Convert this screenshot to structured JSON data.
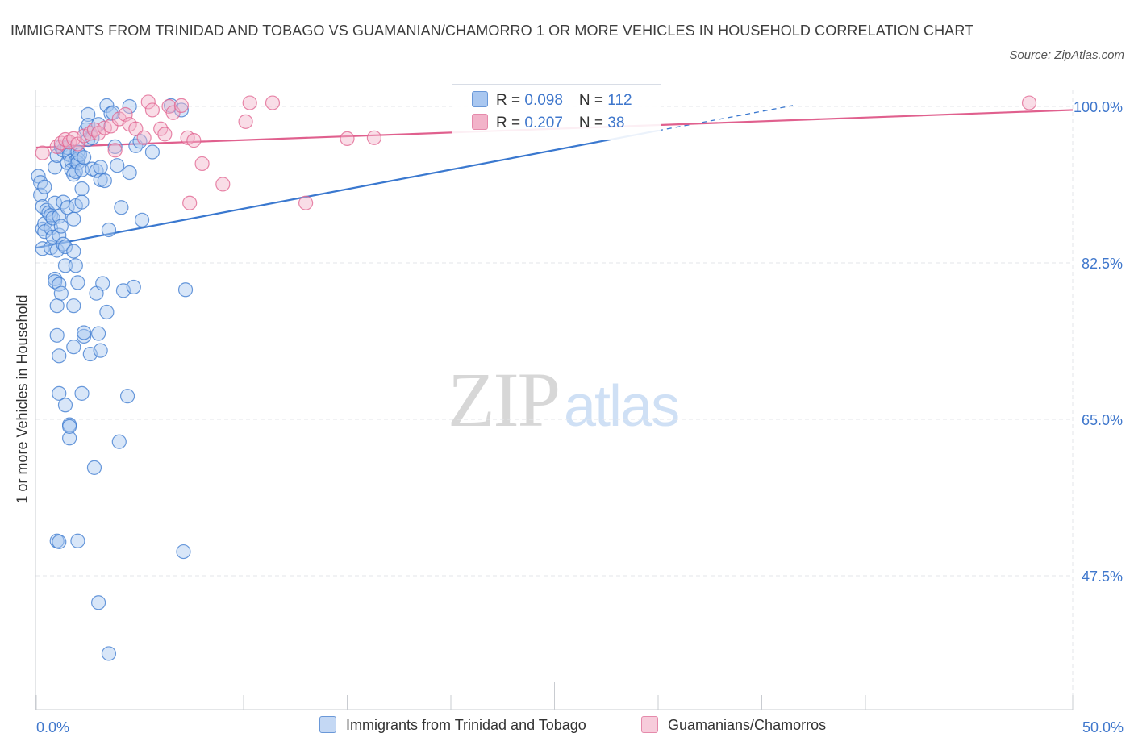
{
  "title": "IMMIGRANTS FROM TRINIDAD AND TOBAGO VS GUAMANIAN/CHAMORRO 1 OR MORE VEHICLES IN HOUSEHOLD CORRELATION CHART",
  "source": "Source: ZipAtlas.com",
  "watermark": {
    "zip": "ZIP",
    "atlas": "atlas"
  },
  "colors": {
    "blue": "#3a78cf",
    "blue_fill": "#a9c7f0",
    "pink": "#e0608e",
    "pink_fill": "#f2b3c9",
    "axis_text": "#3f77cc"
  },
  "legend_top": {
    "rows": [
      {
        "r_label": "R = ",
        "r_value": "0.098",
        "n_label": "N = ",
        "n_value": "112"
      },
      {
        "r_label": "R = ",
        "r_value": "0.207",
        "n_label": "N = ",
        "n_value": "38"
      }
    ]
  },
  "chart_data": {
    "type": "scatter",
    "title": "IMMIGRANTS FROM TRINIDAD AND TOBAGO VS GUAMANIAN/CHAMORRO 1 OR MORE VEHICLES IN HOUSEHOLD CORRELATION CHART",
    "xlabel": "",
    "ylabel": "1 or more Vehicles in Household",
    "xlim": [
      0,
      50
    ],
    "ylim": [
      30,
      101.5
    ],
    "x_tick_labels": [
      "0.0%",
      "50.0%"
    ],
    "y_ticks": [
      100,
      82.5,
      65,
      47.5
    ],
    "y_tick_labels": [
      "100.0%",
      "82.5%",
      "65.0%",
      "47.5%"
    ],
    "grid": true,
    "legend_position": "bottom",
    "series": [
      {
        "name": "Immigrants from Trinidad and Tobago",
        "color": "#3a78cf",
        "fill": "#a9c7f0",
        "trend": {
          "x": [
            0,
            30
          ],
          "y": [
            84.2,
            97.3
          ],
          "dashed_extension": {
            "x": [
              30,
              36.5
            ],
            "y": [
              97.3,
              100.1
            ]
          }
        },
        "points": [
          [
            0.1,
            92.2
          ],
          [
            0.2,
            91.5
          ],
          [
            0.2,
            90.1
          ],
          [
            0.3,
            88.8
          ],
          [
            0.3,
            86.3
          ],
          [
            0.3,
            84.1
          ],
          [
            0.4,
            86.9
          ],
          [
            0.4,
            86.0
          ],
          [
            0.4,
            91.0
          ],
          [
            0.5,
            88.4
          ],
          [
            0.6,
            88.1
          ],
          [
            0.7,
            87.8
          ],
          [
            0.7,
            86.4
          ],
          [
            0.7,
            84.2
          ],
          [
            0.8,
            87.5
          ],
          [
            0.8,
            85.4
          ],
          [
            0.9,
            89.2
          ],
          [
            0.9,
            93.2
          ],
          [
            0.9,
            80.7
          ],
          [
            0.9,
            80.4
          ],
          [
            1.0,
            94.5
          ],
          [
            1.0,
            83.9
          ],
          [
            1.0,
            74.4
          ],
          [
            1.0,
            77.7
          ],
          [
            1.0,
            51.4
          ],
          [
            1.1,
            80.1
          ],
          [
            1.1,
            87.7
          ],
          [
            1.1,
            85.6
          ],
          [
            1.1,
            51.3
          ],
          [
            1.1,
            67.9
          ],
          [
            1.1,
            72.1
          ],
          [
            1.2,
            95.5
          ],
          [
            1.2,
            79.1
          ],
          [
            1.2,
            86.6
          ],
          [
            1.3,
            95.1
          ],
          [
            1.3,
            89.3
          ],
          [
            1.3,
            84.6
          ],
          [
            1.4,
            84.3
          ],
          [
            1.4,
            82.2
          ],
          [
            1.4,
            66.6
          ],
          [
            1.5,
            95.4
          ],
          [
            1.5,
            93.7
          ],
          [
            1.5,
            88.7
          ],
          [
            1.6,
            94.6
          ],
          [
            1.6,
            64.4
          ],
          [
            1.6,
            62.9
          ],
          [
            1.6,
            64.2
          ],
          [
            1.7,
            93.9
          ],
          [
            1.7,
            92.9
          ],
          [
            1.8,
            92.4
          ],
          [
            1.8,
            87.4
          ],
          [
            1.8,
            83.8
          ],
          [
            1.8,
            77.7
          ],
          [
            1.8,
            73.1
          ],
          [
            1.9,
            93.9
          ],
          [
            1.9,
            92.7
          ],
          [
            1.9,
            88.9
          ],
          [
            1.9,
            82.2
          ],
          [
            2.0,
            94.9
          ],
          [
            2.0,
            94.1
          ],
          [
            2.0,
            93.7
          ],
          [
            2.0,
            80.3
          ],
          [
            2.0,
            51.4
          ],
          [
            2.1,
            94.6
          ],
          [
            2.2,
            92.9
          ],
          [
            2.2,
            90.8
          ],
          [
            2.2,
            89.3
          ],
          [
            2.2,
            67.9
          ],
          [
            2.3,
            94.3
          ],
          [
            2.3,
            74.3
          ],
          [
            2.3,
            74.7
          ],
          [
            2.4,
            97.4
          ],
          [
            2.5,
            96.3
          ],
          [
            2.5,
            99.1
          ],
          [
            2.5,
            97.9
          ],
          [
            2.6,
            72.3
          ],
          [
            2.7,
            96.5
          ],
          [
            2.7,
            93.0
          ],
          [
            2.8,
            59.6
          ],
          [
            2.9,
            92.8
          ],
          [
            2.9,
            79.1
          ],
          [
            3.0,
            74.6
          ],
          [
            3.0,
            44.5
          ],
          [
            3.0,
            98.0
          ],
          [
            3.1,
            91.8
          ],
          [
            3.1,
            93.2
          ],
          [
            3.1,
            72.7
          ],
          [
            3.2,
            80.2
          ],
          [
            3.3,
            91.7
          ],
          [
            3.4,
            100.1
          ],
          [
            3.4,
            77.0
          ],
          [
            3.5,
            86.2
          ],
          [
            3.5,
            38.8
          ],
          [
            3.6,
            99.2
          ],
          [
            3.7,
            99.3
          ],
          [
            3.8,
            95.5
          ],
          [
            3.9,
            93.4
          ],
          [
            4.0,
            62.5
          ],
          [
            4.1,
            88.7
          ],
          [
            4.2,
            79.4
          ],
          [
            4.4,
            67.6
          ],
          [
            4.5,
            100.0
          ],
          [
            4.5,
            92.6
          ],
          [
            4.7,
            79.8
          ],
          [
            4.8,
            95.6
          ],
          [
            5.0,
            96.1
          ],
          [
            5.1,
            87.3
          ],
          [
            5.6,
            94.9
          ],
          [
            6.5,
            100.1
          ],
          [
            7.0,
            99.6
          ],
          [
            7.1,
            50.2
          ],
          [
            7.2,
            79.5
          ]
        ]
      },
      {
        "name": "Guamanians/Chamorros",
        "color": "#e0608e",
        "fill": "#f2b3c9",
        "trend": {
          "x": [
            0,
            50
          ],
          "y": [
            95.4,
            99.6
          ]
        },
        "points": [
          [
            0.3,
            94.8
          ],
          [
            1.0,
            95.5
          ],
          [
            1.2,
            95.9
          ],
          [
            1.4,
            96.3
          ],
          [
            1.6,
            96.0
          ],
          [
            1.8,
            96.4
          ],
          [
            2.0,
            95.8
          ],
          [
            2.3,
            96.7
          ],
          [
            2.6,
            97.0
          ],
          [
            2.8,
            97.4
          ],
          [
            3.0,
            97.0
          ],
          [
            3.3,
            97.6
          ],
          [
            3.6,
            97.8
          ],
          [
            3.8,
            95.1
          ],
          [
            4.0,
            98.6
          ],
          [
            4.3,
            99.1
          ],
          [
            4.5,
            98.0
          ],
          [
            4.8,
            97.5
          ],
          [
            5.2,
            96.5
          ],
          [
            5.4,
            100.5
          ],
          [
            5.6,
            99.6
          ],
          [
            6.0,
            97.5
          ],
          [
            6.2,
            96.9
          ],
          [
            6.4,
            100.0
          ],
          [
            6.6,
            99.3
          ],
          [
            7.0,
            100.1
          ],
          [
            7.3,
            96.5
          ],
          [
            7.4,
            89.2
          ],
          [
            7.6,
            96.2
          ],
          [
            8.0,
            93.6
          ],
          [
            9.0,
            91.3
          ],
          [
            10.1,
            98.3
          ],
          [
            10.3,
            100.4
          ],
          [
            11.4,
            100.4
          ],
          [
            13.0,
            89.2
          ],
          [
            15.0,
            96.4
          ],
          [
            16.3,
            96.5
          ],
          [
            47.9,
            100.4
          ]
        ]
      }
    ]
  }
}
